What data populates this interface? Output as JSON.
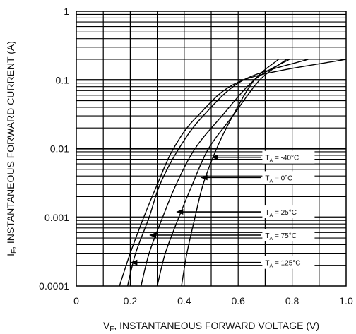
{
  "chart_data": {
    "type": "line",
    "title": "",
    "xlabel_main": "V",
    "xlabel_sub": "F",
    "xlabel_rest": ", INSTANTANEOUS FORWARD VOLTAGE (V)",
    "ylabel_main": "I",
    "ylabel_sub": "F",
    "ylabel_rest": ", INSTANTANEOUS FORWARD CURRENT (A)",
    "x_ticks": [
      "0",
      "0.2",
      "0.4",
      "0.6",
      "0.8",
      "1.0"
    ],
    "x_tick_values": [
      0,
      0.2,
      0.4,
      0.6,
      0.8,
      1.0
    ],
    "y_ticks": [
      "0.0001",
      "0.001",
      "0.01",
      "0.1",
      "1"
    ],
    "y_tick_values": [
      0.0001,
      0.001,
      0.01,
      0.1,
      1
    ],
    "xlim": [
      0,
      1.0
    ],
    "ylim": [
      0.0001,
      1
    ],
    "y_scale": "log",
    "grid": true,
    "series": [
      {
        "name": "-40°C",
        "label_main": "T",
        "label_sub": "A",
        "label_val": " = -40°C",
        "points": [
          [
            0.39,
            0.0001
          ],
          [
            0.41,
            0.0003
          ],
          [
            0.44,
            0.001
          ],
          [
            0.47,
            0.003
          ],
          [
            0.52,
            0.01
          ],
          [
            0.58,
            0.03
          ],
          [
            0.66,
            0.1
          ],
          [
            0.75,
            0.2
          ]
        ],
        "arrow_at": [
          0.5,
          0.0075
        ]
      },
      {
        "name": "0°C",
        "label_main": "T",
        "label_sub": "A",
        "label_val": " = 0°C",
        "points": [
          [
            0.3,
            0.0001
          ],
          [
            0.33,
            0.0003
          ],
          [
            0.38,
            0.001
          ],
          [
            0.43,
            0.003
          ],
          [
            0.49,
            0.01
          ],
          [
            0.58,
            0.03
          ],
          [
            0.68,
            0.1
          ],
          [
            0.78,
            0.2
          ]
        ],
        "arrow_at": [
          0.46,
          0.0038
        ]
      },
      {
        "name": "25°C",
        "label_main": "T",
        "label_sub": "A",
        "label_val": " = 25°C",
        "points": [
          [
            0.24,
            0.0001
          ],
          [
            0.27,
            0.0003
          ],
          [
            0.32,
            0.001
          ],
          [
            0.37,
            0.003
          ],
          [
            0.44,
            0.01
          ],
          [
            0.54,
            0.03
          ],
          [
            0.66,
            0.1
          ],
          [
            0.79,
            0.2
          ]
        ],
        "arrow_at": [
          0.37,
          0.0012
        ]
      },
      {
        "name": "75°C",
        "label_main": "T",
        "label_sub": "A",
        "label_val": " = 75°C",
        "points": [
          [
            0.19,
            0.0001
          ],
          [
            0.22,
            0.0003
          ],
          [
            0.27,
            0.001
          ],
          [
            0.31,
            0.003
          ],
          [
            0.38,
            0.01
          ],
          [
            0.47,
            0.03
          ],
          [
            0.62,
            0.1
          ],
          [
            0.86,
            0.2
          ]
        ],
        "arrow_at": [
          0.27,
          0.00055
        ]
      },
      {
        "name": "125°C",
        "label_main": "T",
        "label_sub": "A",
        "label_val": " = 125°C",
        "points": [
          [
            0.16,
            0.0001
          ],
          [
            0.2,
            0.0003
          ],
          [
            0.25,
            0.001
          ],
          [
            0.3,
            0.003
          ],
          [
            0.36,
            0.01
          ],
          [
            0.45,
            0.03
          ],
          [
            0.62,
            0.1
          ],
          [
            1.0,
            0.2
          ]
        ],
        "arrow_at": [
          0.2,
          0.00022
        ]
      }
    ],
    "annotation_y_values": [
      0.0075,
      0.0038,
      0.0012,
      0.00055,
      0.00022
    ]
  }
}
